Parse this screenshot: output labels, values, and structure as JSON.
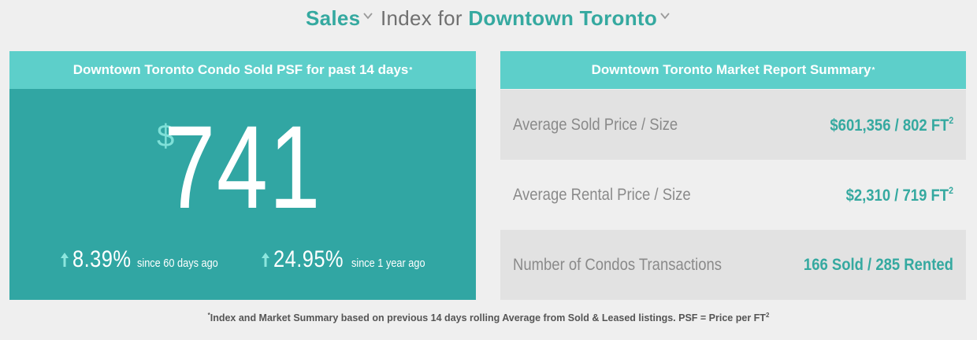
{
  "title": {
    "mode_selected": "Sales",
    "middle_text": "Index for",
    "area_selected": "Downtown Toronto"
  },
  "left_panel": {
    "heading": "Downtown Toronto Condo Sold PSF for past 14 days",
    "heading_marker": "*",
    "currency_symbol": "$",
    "psf_value": "741",
    "stats": [
      {
        "direction": "up",
        "percent": "8.39%",
        "period": "since 60 days ago"
      },
      {
        "direction": "up",
        "percent": "24.95%",
        "period": "since 1 year ago"
      }
    ]
  },
  "right_panel": {
    "heading": "Downtown Toronto Market Report Summary",
    "heading_marker": "*",
    "rows": [
      {
        "label": "Average Sold Price / Size",
        "value": "$601,356 / 802 FT",
        "unit_exp": "2"
      },
      {
        "label": "Average Rental Price / Size",
        "value": "$2,310 / 719 FT",
        "unit_exp": "2"
      },
      {
        "label": "Number of Condos Transactions",
        "value": "166 Sold / 285 Rented",
        "unit_exp": ""
      }
    ]
  },
  "footnote": {
    "marker": "*",
    "text": "Index and Market Summary based on previous 14 days rolling Average from Sold & Leased listings. PSF = Price per FT",
    "unit_exp": "2"
  },
  "colors": {
    "accent": "#35a9a0",
    "panel_dark": "#31a6a3",
    "panel_light": "#5dcfca",
    "background": "#efefef"
  },
  "icons": {
    "dropdown": "chevron-down-icon",
    "trend": "arrow-up-icon"
  }
}
